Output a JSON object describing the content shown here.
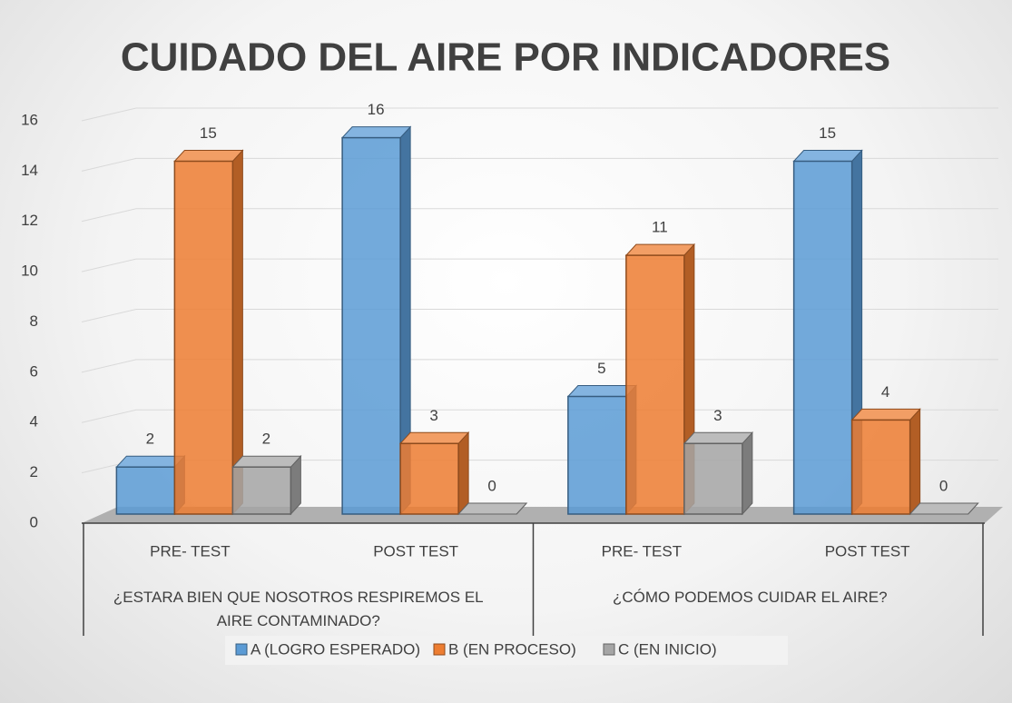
{
  "chart_data": {
    "type": "bar3d",
    "title": "CUIDADO DEL AIRE POR INDICADORES",
    "categories": [
      "PRE- TEST",
      "POST TEST",
      "PRE- TEST",
      "POST TEST"
    ],
    "groups": [
      "¿ESTARA BIEN QUE NOSOTROS RESPIREMOS EL AIRE CONTAMINADO?",
      "¿CÓMO PODEMOS CUIDAR EL AIRE?"
    ],
    "series": [
      {
        "name": "A (LOGRO ESPERADO)",
        "color": "#5b9bd5",
        "values": [
          2,
          16,
          5,
          15
        ]
      },
      {
        "name": "B (EN PROCESO)",
        "color": "#ed7d31",
        "values": [
          15,
          3,
          11,
          4
        ]
      },
      {
        "name": "C (EN INICIO)",
        "color": "#a5a5a5",
        "values": [
          2,
          0,
          3,
          0
        ]
      }
    ],
    "ylim": [
      0,
      16
    ],
    "yticks": [
      0,
      2,
      4,
      6,
      8,
      10,
      12,
      14,
      16
    ],
    "grid": true,
    "legend": "bottom"
  }
}
